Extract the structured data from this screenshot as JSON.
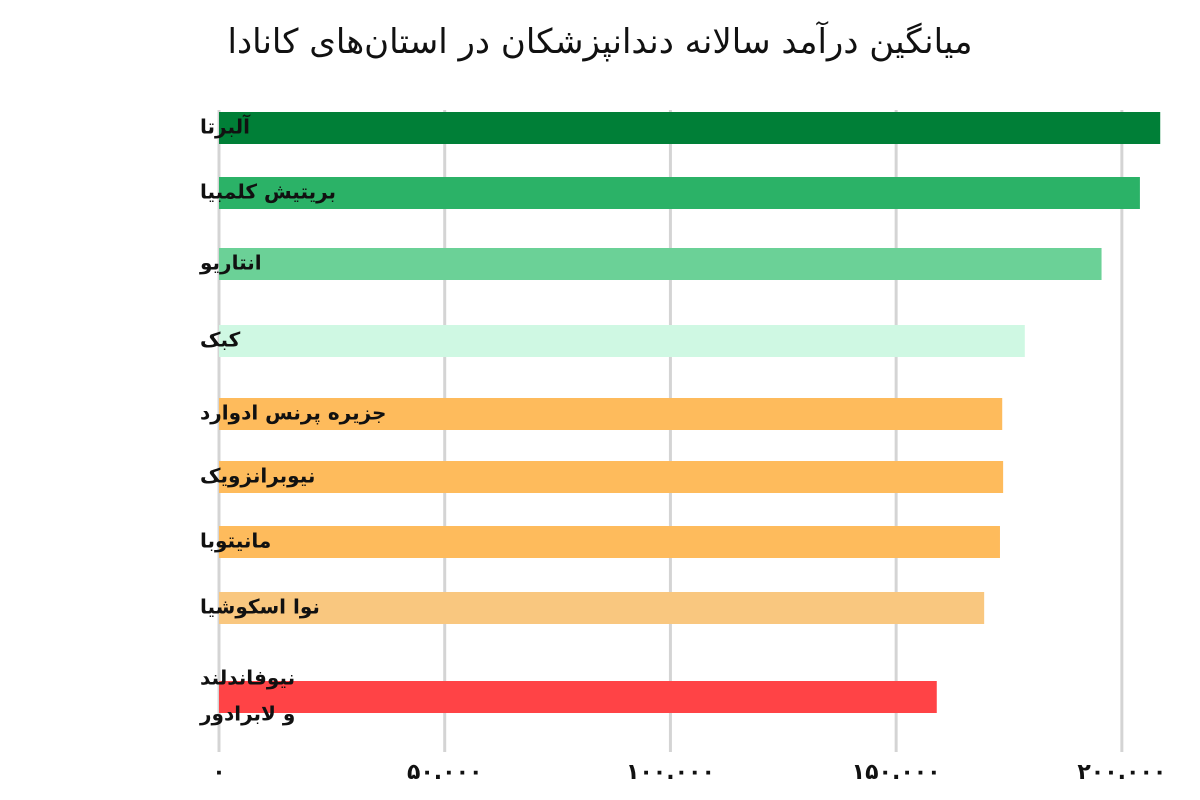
{
  "chart_data": {
    "type": "bar",
    "orientation": "horizontal",
    "title": "میانگین درآمد سالانه دندانپزشکان در استان‌های کانادا",
    "categories": [
      [
        "آلبرتا"
      ],
      [
        "بریتیش کلمبیا"
      ],
      [
        "انتاریو"
      ],
      [
        "کبک"
      ],
      [
        "جزیره پرنس ادوارد"
      ],
      [
        "نیوبرانزویک"
      ],
      [
        "مانیتوبا"
      ],
      [
        "نوا اسکوشیا"
      ],
      [
        "نیوفاندلند",
        "و لابرادور"
      ]
    ],
    "values": [
      208500,
      204000,
      195500,
      178500,
      173500,
      173700,
      173000,
      169500,
      159000
    ],
    "colors": [
      "#007F37",
      "#2BB267",
      "#6BD197",
      "#CFF8E3",
      "#FEBB5C",
      "#FEBB5C",
      "#FEBB5C",
      "#F9C77F",
      "#FF4346"
    ],
    "xlim": [
      0,
      210000
    ],
    "x_ticks": [
      0,
      50000,
      100000,
      150000,
      200000
    ],
    "x_tick_labels": [
      "۰",
      "۵۰.۰۰۰",
      "۱۰۰.۰۰۰",
      "۱۵۰.۰۰۰",
      "۲۰۰.۰۰۰"
    ],
    "grid": "vertical",
    "legend": "none"
  }
}
